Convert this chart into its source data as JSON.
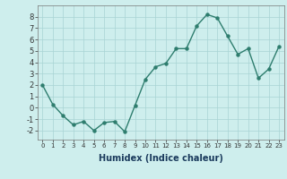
{
  "x": [
    0,
    1,
    2,
    3,
    4,
    5,
    6,
    7,
    8,
    9,
    10,
    11,
    12,
    13,
    14,
    15,
    16,
    17,
    18,
    19,
    20,
    21,
    22,
    23
  ],
  "y": [
    2.0,
    0.3,
    -0.7,
    -1.5,
    -1.2,
    -2.0,
    -1.3,
    -1.2,
    -2.1,
    0.2,
    2.5,
    3.6,
    3.9,
    5.2,
    5.2,
    7.2,
    8.2,
    7.9,
    6.3,
    4.7,
    5.2,
    2.6,
    3.4,
    5.4
  ],
  "xlabel": "Humidex (Indice chaleur)",
  "ylim": [
    -2.8,
    9.0
  ],
  "xlim": [
    -0.5,
    23.5
  ],
  "yticks": [
    -2,
    -1,
    0,
    1,
    2,
    3,
    4,
    5,
    6,
    7,
    8
  ],
  "xticks": [
    0,
    1,
    2,
    3,
    4,
    5,
    6,
    7,
    8,
    9,
    10,
    11,
    12,
    13,
    14,
    15,
    16,
    17,
    18,
    19,
    20,
    21,
    22,
    23
  ],
  "line_color": "#2e7d6e",
  "bg_color": "#ceeeed",
  "grid_color": "#a8d4d4",
  "xlabel_color": "#1a3a5c",
  "xlabel_fontsize": 7,
  "tick_fontsize_x": 5,
  "tick_fontsize_y": 6,
  "linewidth": 1.0,
  "markersize": 2.2
}
